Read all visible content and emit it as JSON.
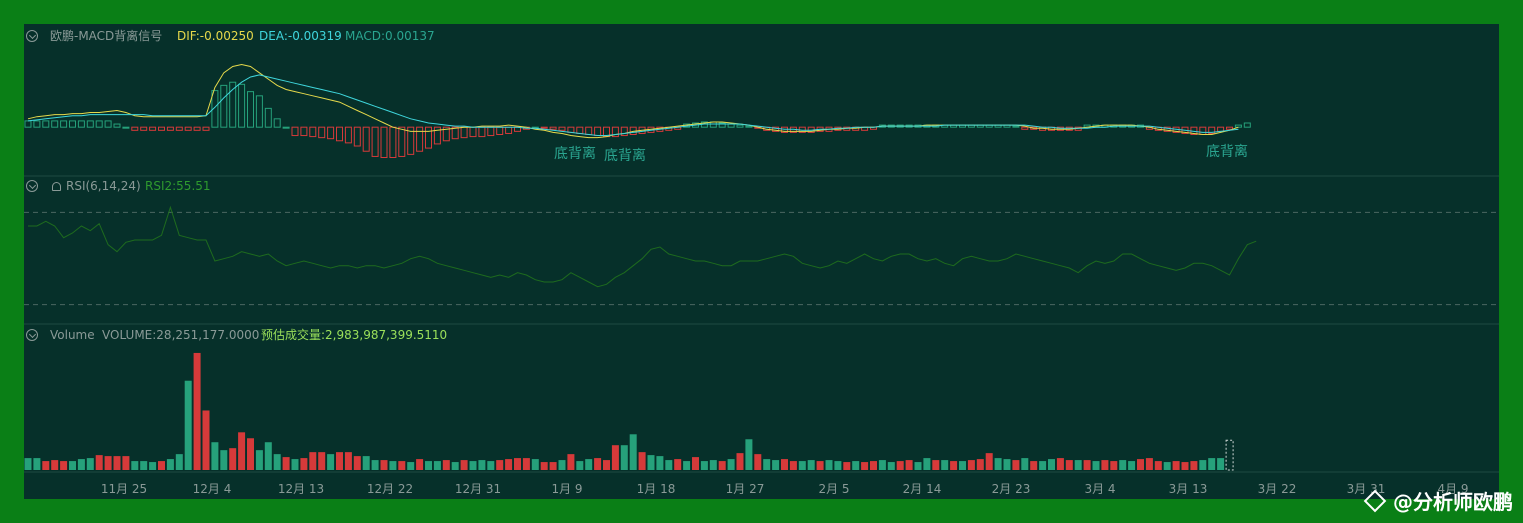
{
  "macd_panel": {
    "name": "欧鹏-MACD背离信号",
    "dif": "DIF:-0.00250",
    "dea": "DEA:-0.00319",
    "macd": "MACD:0.00137",
    "divergence_labels": [
      "底背离",
      "底背离",
      "底背离"
    ]
  },
  "rsi_panel": {
    "name": "RSI(6,14,24)",
    "rsi2": "RSI2:55.51"
  },
  "volume_panel": {
    "name": "Volume",
    "volume": "VOLUME:28,251,177.0000",
    "estimate": "预估成交量:2,983,987,399.5110"
  },
  "x_axis": {
    "ticks": [
      "11月 25",
      "12月 4",
      "12月 13",
      "12月 22",
      "12月 31",
      "1月 9",
      "1月 18",
      "1月 27",
      "2月 5",
      "2月 14",
      "2月 23",
      "3月 4",
      "3月 13",
      "3月 22",
      "3月 31",
      "4月 9"
    ]
  },
  "watermark": "@分析师欧鹏",
  "colors": {
    "up": "#26a17b",
    "down": "#d63a3a",
    "dif": "#e6d94b",
    "dea": "#3fd6dc",
    "rsi": "#1e6b1e",
    "background": "#06302a",
    "frame": "#0a7f16"
  },
  "chart_data": [
    {
      "type": "bar",
      "title": "欧鹏-MACD背离信号",
      "series": [
        {
          "name": "MACD",
          "values": [
            0.6,
            0.6,
            0.6,
            0.6,
            0.6,
            0.6,
            0.6,
            0.6,
            0.6,
            0.6,
            0.3,
            0,
            -0.3,
            -0.3,
            -0.3,
            -0.3,
            -0.3,
            -0.3,
            -0.3,
            -0.3,
            -0.3,
            3.5,
            4,
            4.3,
            4.1,
            3.4,
            3,
            1.8,
            0.8,
            0,
            -0.8,
            -0.8,
            -0.9,
            -1,
            -1.1,
            -1.3,
            -1.5,
            -1.8,
            -2.3,
            -2.8,
            -2.9,
            -2.9,
            -2.8,
            -2.6,
            -2.3,
            -2,
            -1.6,
            -1.3,
            -1.1,
            -1,
            -0.9,
            -0.9,
            -0.8,
            -0.7,
            -0.6,
            -0.4,
            -0.2,
            0,
            -0.1,
            -0.2,
            -0.3,
            -0.5,
            -0.6,
            -0.7,
            -0.8,
            -0.9,
            -0.9,
            -0.8,
            -0.7,
            -0.6,
            -0.5,
            -0.4,
            -0.3,
            -0.2,
            0.3,
            0.4,
            0.5,
            0.5,
            0.4,
            0.3,
            0.2,
            0.1,
            -0.1,
            -0.3,
            -0.4,
            -0.5,
            -0.5,
            -0.5,
            -0.5,
            -0.4,
            -0.4,
            -0.3,
            -0.3,
            -0.3,
            -0.3,
            -0.2,
            0.2,
            0.2,
            0.2,
            0.2,
            0.2,
            0.2,
            0.2,
            0.2,
            0.2,
            0.2,
            0.2,
            0.2,
            0.2,
            0.2,
            0.2,
            0.1,
            -0.2,
            -0.2,
            -0.3,
            -0.3,
            -0.3,
            -0.3,
            -0.3,
            0.2,
            0.2,
            0.2,
            0.2,
            0.2,
            0.2,
            0.2,
            -0.2,
            -0.3,
            -0.4,
            -0.5,
            -0.6,
            -0.7,
            -0.7,
            -0.6,
            -0.4,
            -0.2,
            0.2,
            0.4
          ]
        },
        {
          "name": "DIF",
          "values": [
            0.8,
            1.0,
            1.1,
            1.2,
            1.2,
            1.3,
            1.3,
            1.4,
            1.4,
            1.5,
            1.6,
            1.4,
            1.1,
            1.0,
            1.0,
            1.0,
            1.0,
            1.0,
            1.0,
            1.0,
            1.1,
            3.8,
            5.2,
            5.8,
            6.0,
            5.8,
            5.2,
            4.6,
            4.0,
            3.6,
            3.4,
            3.2,
            3.0,
            2.8,
            2.6,
            2.4,
            2.0,
            1.6,
            1.2,
            0.8,
            0.4,
            0.0,
            -0.2,
            -0.4,
            -0.4,
            -0.4,
            -0.3,
            -0.2,
            -0.1,
            0.0,
            0.0,
            0.1,
            0.1,
            0.1,
            0.2,
            0.1,
            0.0,
            -0.2,
            -0.3,
            -0.5,
            -0.6,
            -0.8,
            -0.9,
            -1.0,
            -1.0,
            -0.9,
            -0.7,
            -0.6,
            -0.4,
            -0.3,
            -0.2,
            -0.1,
            0.0,
            0.1,
            0.2,
            0.3,
            0.4,
            0.5,
            0.5,
            0.4,
            0.3,
            0.2,
            0.0,
            -0.2,
            -0.3,
            -0.4,
            -0.4,
            -0.4,
            -0.4,
            -0.3,
            -0.2,
            -0.2,
            -0.1,
            -0.1,
            0.0,
            0.0,
            0.1,
            0.1,
            0.1,
            0.1,
            0.1,
            0.2,
            0.2,
            0.2,
            0.2,
            0.2,
            0.2,
            0.2,
            0.2,
            0.2,
            0.2,
            0.2,
            0.1,
            -0.1,
            -0.1,
            -0.2,
            -0.2,
            -0.2,
            -0.1,
            0.0,
            0.1,
            0.2,
            0.2,
            0.2,
            0.2,
            0.1,
            0.0,
            -0.2,
            -0.3,
            -0.4,
            -0.5,
            -0.6,
            -0.7,
            -0.7,
            -0.5,
            -0.3,
            0.0
          ]
        },
        {
          "name": "DEA",
          "values": [
            0.6,
            0.7,
            0.8,
            0.9,
            1.0,
            1.1,
            1.1,
            1.2,
            1.2,
            1.2,
            1.2,
            1.2,
            1.2,
            1.2,
            1.1,
            1.1,
            1.1,
            1.1,
            1.1,
            1.1,
            1.1,
            1.9,
            2.8,
            3.6,
            4.3,
            4.8,
            5.0,
            4.8,
            4.6,
            4.4,
            4.2,
            4.0,
            3.8,
            3.6,
            3.4,
            3.2,
            2.9,
            2.6,
            2.3,
            2.0,
            1.7,
            1.4,
            1.1,
            0.8,
            0.6,
            0.4,
            0.3,
            0.2,
            0.1,
            0.1,
            0.0,
            0.0,
            0.0,
            0.0,
            0.0,
            0.0,
            -0.1,
            -0.1,
            -0.2,
            -0.3,
            -0.4,
            -0.5,
            -0.6,
            -0.7,
            -0.8,
            -0.8,
            -0.7,
            -0.6,
            -0.5,
            -0.4,
            -0.3,
            -0.2,
            -0.1,
            0.0,
            0.1,
            0.2,
            0.3,
            0.3,
            0.3,
            0.3,
            0.3,
            0.2,
            0.1,
            0.0,
            -0.1,
            -0.2,
            -0.2,
            -0.3,
            -0.3,
            -0.2,
            -0.2,
            -0.1,
            -0.1,
            0.0,
            0.0,
            0.0,
            0.1,
            0.1,
            0.1,
            0.1,
            0.1,
            0.1,
            0.1,
            0.2,
            0.2,
            0.2,
            0.2,
            0.2,
            0.2,
            0.2,
            0.2,
            0.2,
            0.2,
            0.1,
            0.0,
            0.0,
            -0.1,
            -0.1,
            -0.1,
            -0.1,
            0.0,
            0.0,
            0.1,
            0.1,
            0.1,
            0.1,
            0.1,
            0.0,
            -0.1,
            -0.2,
            -0.3,
            -0.4,
            -0.5,
            -0.5,
            -0.4,
            -0.3,
            -0.2
          ]
        }
      ],
      "ylim": [
        -4,
        7
      ]
    },
    {
      "type": "line",
      "title": "RSI(6,14,24)",
      "series": [
        {
          "name": "RSI2",
          "values": [
            62,
            62,
            64,
            62,
            57,
            59,
            62,
            60,
            63,
            54,
            51,
            55,
            56,
            56,
            56,
            58,
            70,
            58,
            57,
            56,
            56,
            47,
            48,
            49,
            51,
            50,
            49,
            50,
            47,
            45,
            46,
            47,
            46,
            45,
            44,
            45,
            45,
            44,
            45,
            45,
            44,
            45,
            46,
            48,
            49,
            48,
            46,
            45,
            44,
            43,
            42,
            41,
            40,
            41,
            40,
            42,
            41,
            39,
            38,
            38,
            39,
            42,
            40,
            38,
            36,
            37,
            40,
            42,
            45,
            48,
            52,
            53,
            50,
            49,
            48,
            47,
            47,
            46,
            45,
            45,
            47,
            47,
            47,
            48,
            49,
            50,
            49,
            46,
            45,
            44,
            45,
            47,
            46,
            48,
            50,
            48,
            47,
            49,
            50,
            50,
            48,
            47,
            48,
            46,
            45,
            48,
            49,
            48,
            47,
            47,
            48,
            50,
            49,
            48,
            47,
            46,
            45,
            44,
            42,
            45,
            47,
            46,
            47,
            50,
            50,
            48,
            46,
            45,
            44,
            43,
            44,
            46,
            46,
            45,
            43,
            41,
            48,
            54,
            55.5
          ]
        }
      ],
      "ylim": [
        20,
        80
      ]
    },
    {
      "type": "bar",
      "title": "Volume",
      "series": [
        {
          "name": "Volume",
          "values": [
            12,
            12,
            9,
            10,
            9,
            9,
            11,
            12,
            15,
            14,
            14,
            14,
            9,
            9,
            8,
            9,
            11,
            16,
            90,
            118,
            60,
            28,
            20,
            22,
            38,
            32,
            20,
            28,
            16,
            13,
            11,
            12,
            18,
            18,
            16,
            18,
            18,
            14,
            14,
            10,
            10,
            9,
            9,
            8,
            11,
            9,
            9,
            10,
            8,
            10,
            9,
            10,
            9,
            10,
            11,
            12,
            12,
            11,
            8,
            8,
            10,
            16,
            9,
            11,
            12,
            10,
            25,
            25,
            36,
            18,
            15,
            14,
            10,
            11,
            9,
            13,
            9,
            10,
            9,
            11,
            17,
            31,
            16,
            11,
            10,
            11,
            9,
            9,
            10,
            9,
            10,
            9,
            8,
            9,
            8,
            9,
            10,
            8,
            9,
            10,
            8,
            12,
            10,
            10,
            9,
            9,
            10,
            11,
            17,
            12,
            11,
            10,
            12,
            9,
            9,
            11,
            12,
            10,
            10,
            10,
            9,
            10,
            9,
            10,
            9,
            11,
            12,
            9,
            8,
            9,
            8,
            9,
            10,
            12,
            12
          ]
        },
        {
          "name": "Direction",
          "values": [
            1,
            1,
            -1,
            -1,
            -1,
            1,
            1,
            1,
            -1,
            -1,
            -1,
            -1,
            1,
            1,
            1,
            -1,
            1,
            1,
            1,
            -1,
            -1,
            1,
            1,
            -1,
            -1,
            -1,
            1,
            1,
            1,
            -1,
            1,
            -1,
            -1,
            -1,
            1,
            -1,
            -1,
            -1,
            1,
            1,
            -1,
            1,
            -1,
            1,
            -1,
            1,
            1,
            -1,
            1,
            -1,
            1,
            1,
            1,
            -1,
            -1,
            -1,
            -1,
            1,
            -1,
            -1,
            1,
            -1,
            1,
            1,
            -1,
            -1,
            -1,
            1,
            1,
            -1,
            1,
            1,
            1,
            -1,
            1,
            -1,
            1,
            1,
            -1,
            1,
            -1,
            1,
            -1,
            1,
            1,
            -1,
            -1,
            1,
            1,
            -1,
            1,
            1,
            -1,
            1,
            -1,
            -1,
            1,
            1,
            -1,
            -1,
            1,
            1,
            -1,
            1,
            -1,
            1,
            -1,
            -1,
            -1,
            1,
            1,
            -1,
            1,
            -1,
            1,
            1,
            -1,
            -1,
            1,
            -1,
            1,
            -1,
            -1,
            1,
            1,
            -1,
            -1,
            -1,
            1,
            -1,
            -1,
            -1,
            1,
            1,
            1,
            1,
            1
          ]
        }
      ],
      "ylim": [
        0,
        125
      ]
    }
  ]
}
